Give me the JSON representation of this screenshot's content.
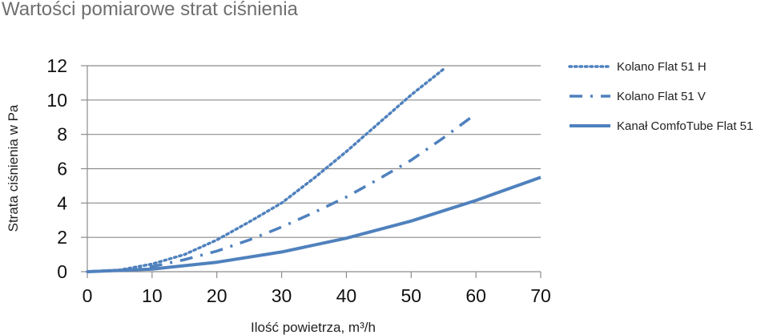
{
  "page": {
    "title": "Wartości pomiarowe strat ciśnienia"
  },
  "chart_data": {
    "type": "line",
    "title": "Wartości pomiarowe strat ciśnienia",
    "xlabel": "Ilość powietrza, m³/h",
    "ylabel": "Strata ciśnienia w Pa",
    "xlim": [
      0,
      70
    ],
    "ylim": [
      0,
      12
    ],
    "x_ticks": [
      0,
      10,
      20,
      30,
      40,
      50,
      60,
      70
    ],
    "y_ticks": [
      0,
      2,
      4,
      6,
      8,
      10,
      12
    ],
    "grid": "horizontal",
    "legend_position": "right",
    "series": [
      {
        "name": "Kolano Flat 51 H",
        "style": "dotted",
        "color": "#4f81bd",
        "x": [
          0,
          5,
          10,
          15,
          20,
          25,
          30,
          35,
          40,
          45,
          50,
          55
        ],
        "y": [
          0,
          0.1,
          0.45,
          1.0,
          1.85,
          2.9,
          4.0,
          5.45,
          7.0,
          8.65,
          10.3,
          11.8
        ]
      },
      {
        "name": "Kolano Flat 51 V",
        "style": "dash-dot",
        "color": "#4f81bd",
        "x": [
          0,
          5,
          10,
          15,
          20,
          25,
          30,
          35,
          40,
          45,
          50,
          55,
          60
        ],
        "y": [
          0,
          0.07,
          0.3,
          0.7,
          1.2,
          1.85,
          2.6,
          3.45,
          4.35,
          5.4,
          6.5,
          7.8,
          9.2
        ]
      },
      {
        "name": "Kanał ComfoTube Flat 51",
        "style": "solid",
        "color": "#4f81bd",
        "x": [
          0,
          10,
          20,
          30,
          40,
          50,
          60,
          70
        ],
        "y": [
          0,
          0.15,
          0.55,
          1.15,
          1.95,
          2.95,
          4.15,
          5.5
        ]
      }
    ]
  }
}
